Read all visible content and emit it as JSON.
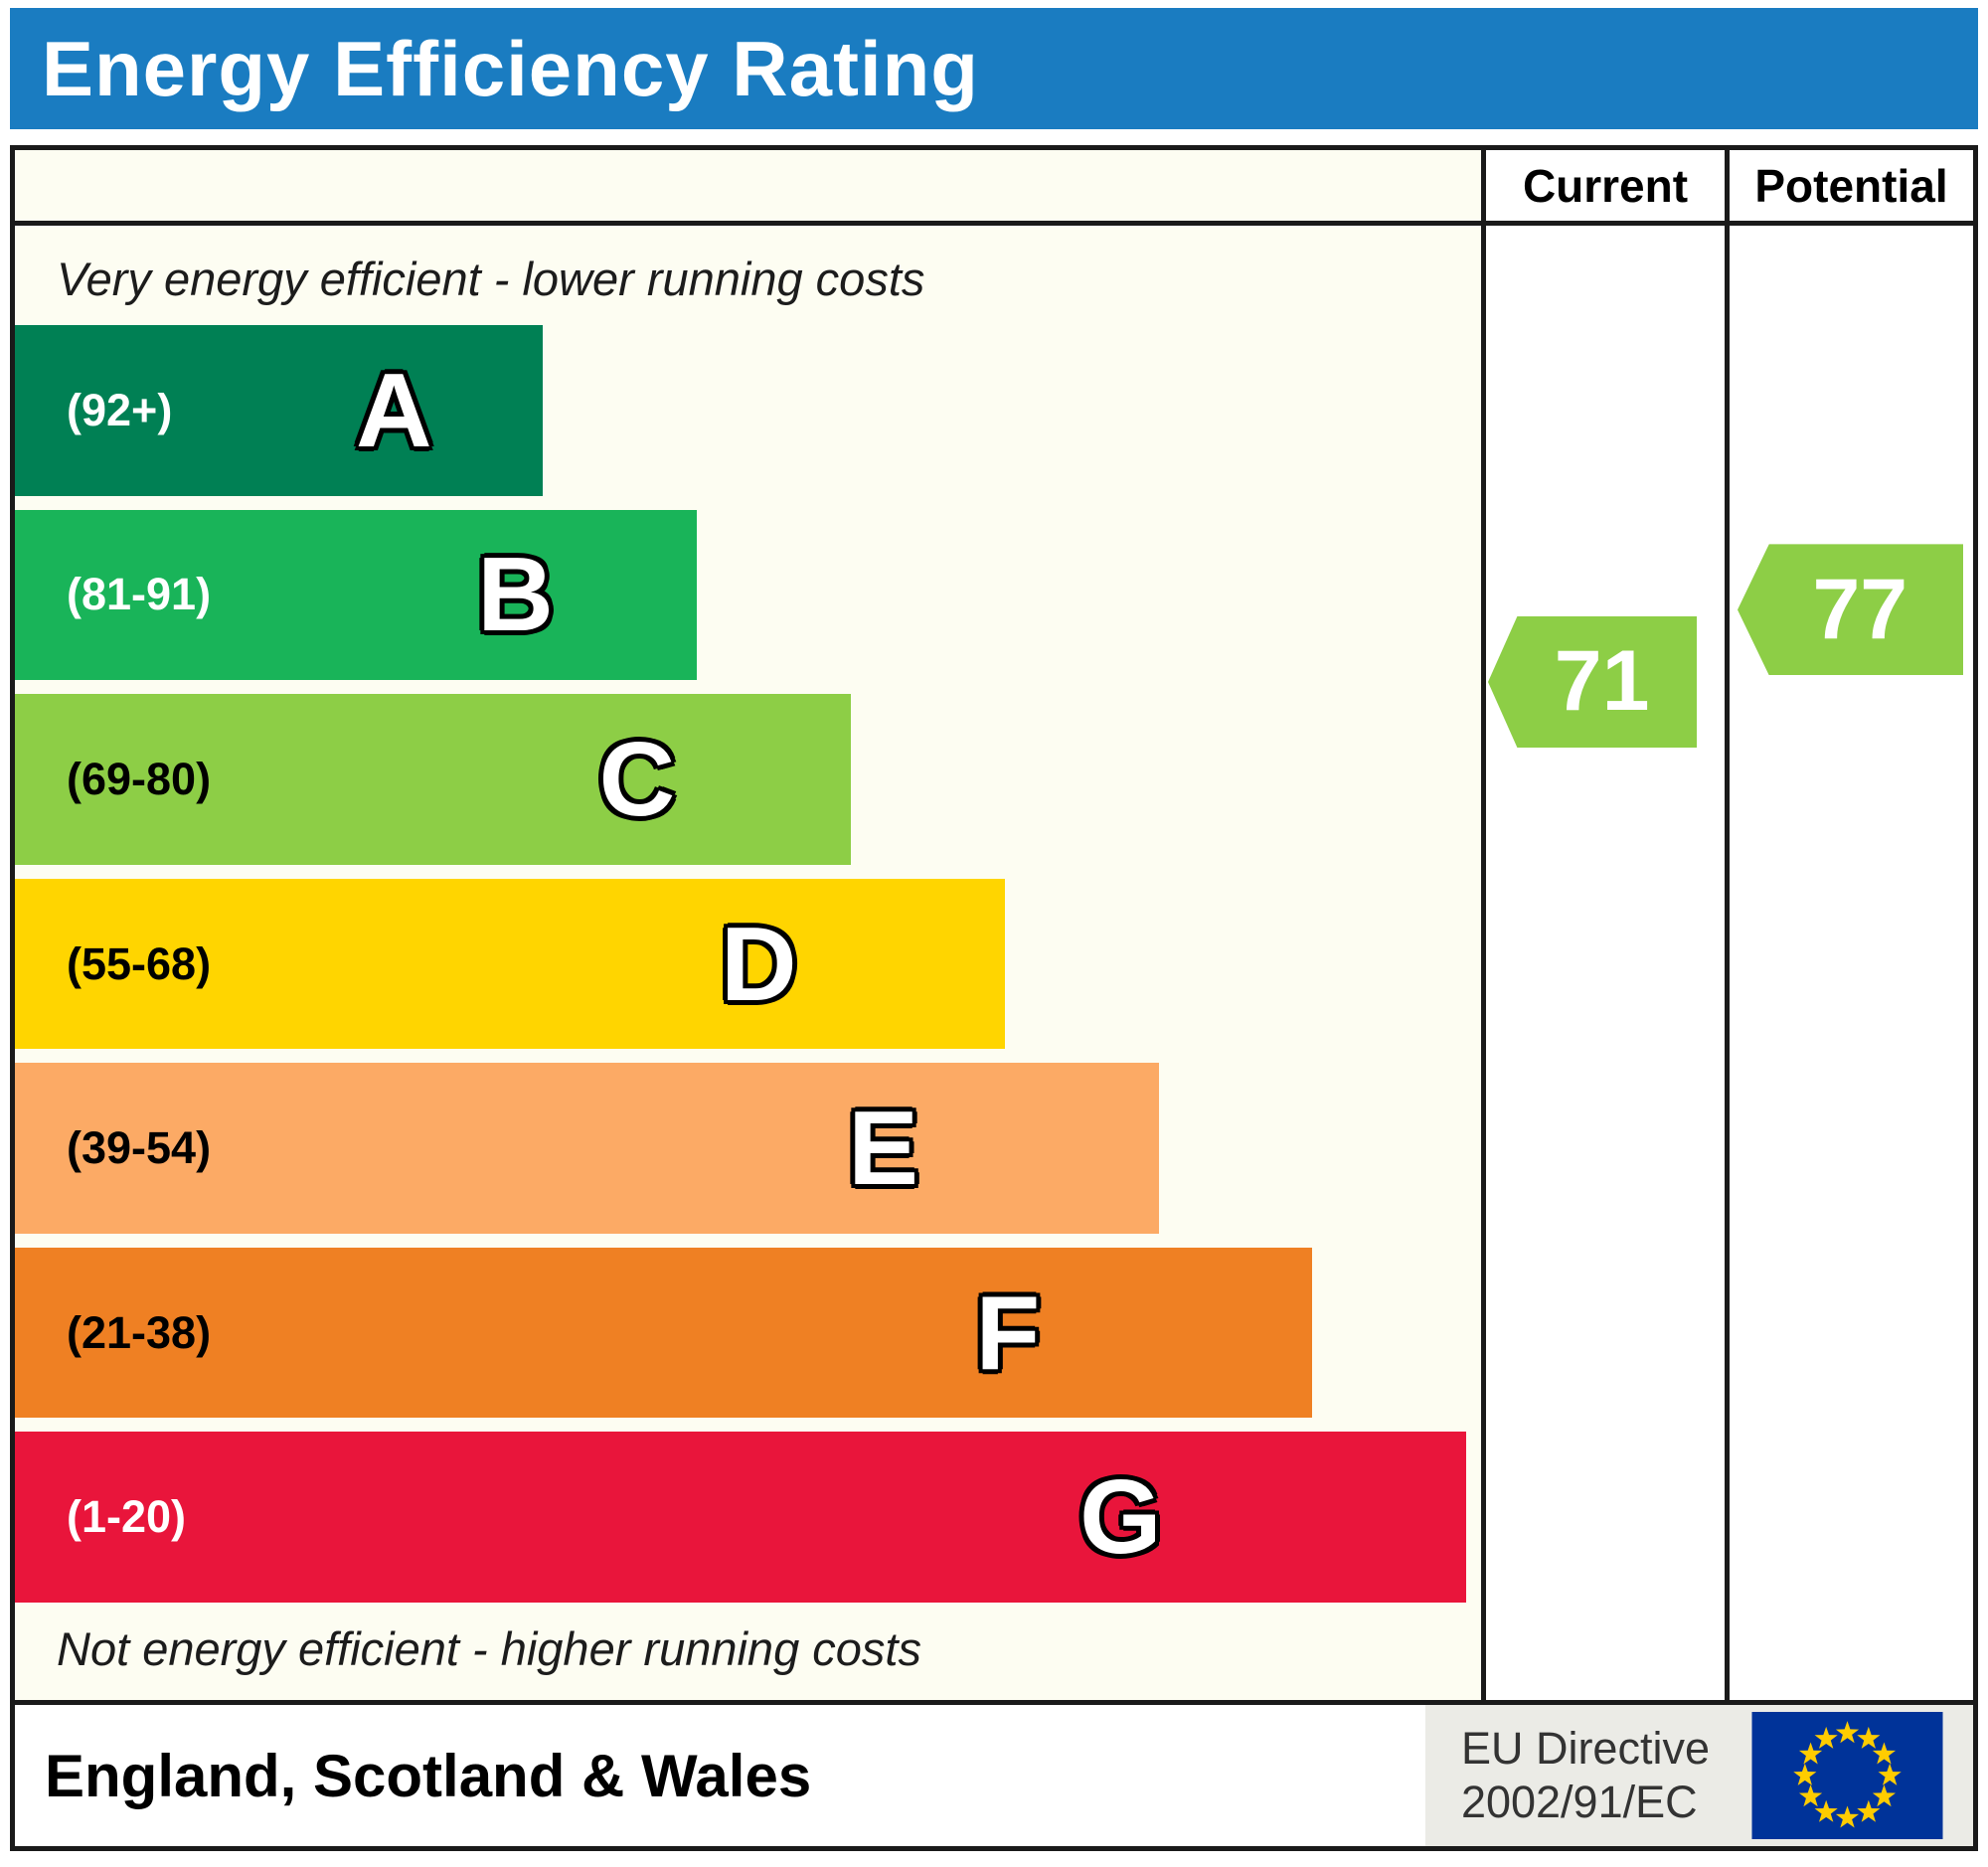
{
  "title": "Energy Efficiency Rating",
  "columns": {
    "current": "Current",
    "potential": "Potential"
  },
  "notes": {
    "top": "Very energy efficient - lower running costs",
    "bottom": "Not energy efficient - higher running costs"
  },
  "bands": [
    {
      "letter": "A",
      "range": "(92+)",
      "color": "#008054",
      "text_color": "#ffffff",
      "width_pct": 36
    },
    {
      "letter": "B",
      "range": "(81-91)",
      "color": "#19b459",
      "text_color": "#ffffff",
      "width_pct": 46.5
    },
    {
      "letter": "C",
      "range": "(69-80)",
      "color": "#8dce46",
      "text_color": "#000000",
      "width_pct": 57
    },
    {
      "letter": "D",
      "range": "(55-68)",
      "color": "#ffd500",
      "text_color": "#000000",
      "width_pct": 67.5
    },
    {
      "letter": "E",
      "range": "(39-54)",
      "color": "#fcaa65",
      "text_color": "#000000",
      "width_pct": 78
    },
    {
      "letter": "F",
      "range": "(21-38)",
      "color": "#ef8023",
      "text_color": "#000000",
      "width_pct": 88.5
    },
    {
      "letter": "G",
      "range": "(1-20)",
      "color": "#e9153b",
      "text_color": "#ffffff",
      "width_pct": 99
    }
  ],
  "ratings": {
    "current": {
      "value": "71",
      "color": "#8dce46"
    },
    "potential": {
      "value": "77",
      "color": "#8dce46"
    }
  },
  "footer": {
    "region": "England, Scotland & Wales",
    "directive_line1": "EU Directive",
    "directive_line2": "2002/91/EC"
  },
  "theme": {
    "header_bg": "#1a7cc1",
    "header_text": "#ffffff",
    "chart_bg": "#fdfdf2",
    "border": "#1a1a1a",
    "footer_panel": "#ebebe6",
    "eu_flag_bg": "#003399",
    "eu_star": "#ffcc00"
  },
  "chart_data": {
    "type": "bar",
    "title": "Energy Efficiency Rating",
    "categories": [
      "A",
      "B",
      "C",
      "D",
      "E",
      "F",
      "G"
    ],
    "band_ranges": [
      "92+",
      "81-91",
      "69-80",
      "55-68",
      "39-54",
      "21-38",
      "1-20"
    ],
    "band_colors": [
      "#008054",
      "#19b459",
      "#8dce46",
      "#ffd500",
      "#fcaa65",
      "#ef8023",
      "#e9153b"
    ],
    "band_bar_widths_pct": [
      36,
      46.5,
      57,
      67.5,
      78,
      88.5,
      99
    ],
    "series": [
      {
        "name": "Current",
        "value": 71,
        "band": "C"
      },
      {
        "name": "Potential",
        "value": 77,
        "band": "C"
      }
    ],
    "annotations": [
      "Very energy efficient - lower running costs",
      "Not energy efficient - higher running costs"
    ],
    "region": "England, Scotland & Wales",
    "directive": "EU Directive 2002/91/EC",
    "legend_position": "none",
    "grid": false
  }
}
